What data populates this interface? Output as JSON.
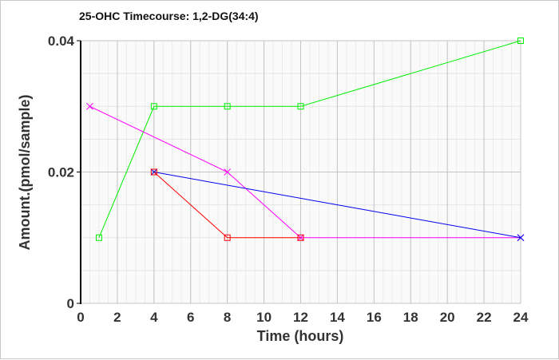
{
  "chart_data": {
    "type": "line",
    "title": "25-OHC Timecourse: 1,2-DG(34:4)",
    "xlabel": "Time (hours)",
    "ylabel": "Amount.(pmol/sample)",
    "xlim": [
      0,
      24
    ],
    "ylim": [
      0,
      0.04
    ],
    "x_ticks": [
      "0",
      "2",
      "4",
      "6",
      "8",
      "10",
      "12",
      "14",
      "16",
      "18",
      "20",
      "22",
      "24"
    ],
    "y_ticks": [
      "0",
      "0.02",
      "0.04"
    ],
    "grid": true,
    "series": [
      {
        "color": "#00ee00",
        "marker": "square",
        "x": [
          1,
          4,
          8,
          12,
          24
        ],
        "y": [
          0.01,
          0.03,
          0.03,
          0.03,
          0.04
        ]
      },
      {
        "color": "#ff00ff",
        "marker": "x",
        "x": [
          0.5,
          8,
          12,
          24
        ],
        "y": [
          0.03,
          0.02,
          0.01,
          0.01
        ]
      },
      {
        "color": "#0000ee",
        "marker": "x",
        "x": [
          4,
          24
        ],
        "y": [
          0.02,
          0.01
        ]
      },
      {
        "color": "#ff0000",
        "marker": "square",
        "x": [
          4,
          8,
          12
        ],
        "y": [
          0.02,
          0.01,
          0.01
        ]
      }
    ]
  }
}
